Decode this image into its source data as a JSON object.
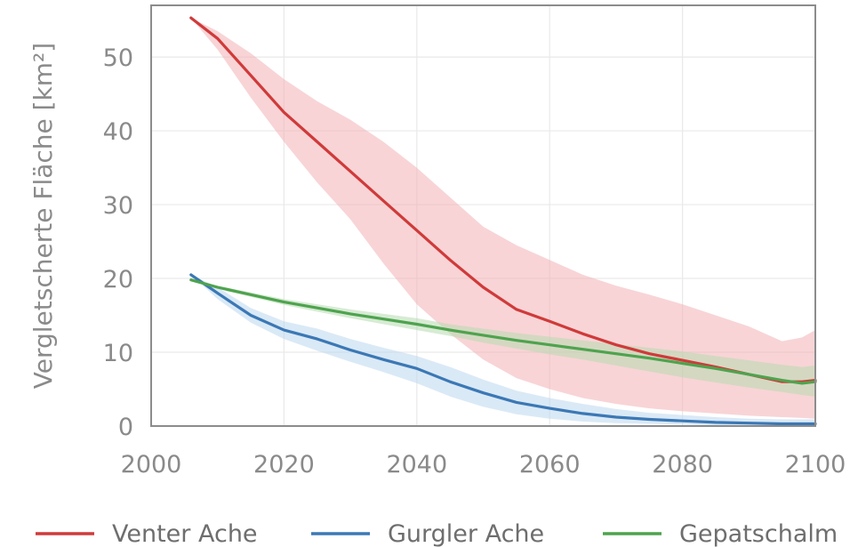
{
  "chart_data": {
    "type": "line",
    "title": "",
    "xlabel": "",
    "ylabel": "Vergletscherte Fläche [km²]",
    "xlim": [
      2000,
      2100
    ],
    "ylim": [
      0,
      57
    ],
    "x_ticks": [
      2000,
      2020,
      2040,
      2060,
      2080,
      2100
    ],
    "x_tick_labels": [
      "2000",
      "2020",
      "2040",
      "2060",
      "2080",
      "2100"
    ],
    "y_ticks": [
      0,
      10,
      20,
      30,
      40,
      50
    ],
    "y_tick_labels": [
      "0",
      "10",
      "20",
      "30",
      "40",
      "50"
    ],
    "grid": true,
    "legend_position": "bottom",
    "series": [
      {
        "name": "Venter Ache",
        "color": "#d03a3a",
        "band_color": "#f3b1b5",
        "x": [
          2006,
          2010,
          2015,
          2020,
          2025,
          2030,
          2035,
          2040,
          2045,
          2050,
          2055,
          2060,
          2065,
          2070,
          2075,
          2080,
          2085,
          2090,
          2095,
          2098,
          2100
        ],
        "values": [
          55.3,
          52.5,
          47.5,
          42.5,
          38.5,
          34.5,
          30.5,
          26.5,
          22.5,
          18.8,
          15.8,
          14.2,
          12.5,
          11.0,
          9.8,
          8.9,
          8.0,
          7.0,
          6.0,
          6.0,
          6.2
        ],
        "lower": [
          55.3,
          51.0,
          44.5,
          38.5,
          33.0,
          28.0,
          22.0,
          16.5,
          12.5,
          9.0,
          6.5,
          5.0,
          3.8,
          3.0,
          2.4,
          2.0,
          1.7,
          1.4,
          1.2,
          1.1,
          1.0
        ],
        "upper": [
          55.3,
          53.5,
          50.5,
          47.0,
          44.0,
          41.5,
          38.5,
          35.0,
          31.0,
          27.0,
          24.5,
          22.5,
          20.5,
          19.0,
          17.8,
          16.5,
          15.0,
          13.5,
          11.5,
          12.0,
          13.0
        ]
      },
      {
        "name": "Gurgler Ache",
        "color": "#3b78b5",
        "band_color": "#bcd7ee",
        "x": [
          2006,
          2010,
          2015,
          2020,
          2025,
          2030,
          2035,
          2040,
          2045,
          2050,
          2055,
          2060,
          2065,
          2070,
          2075,
          2080,
          2085,
          2090,
          2095,
          2100
        ],
        "values": [
          20.5,
          18.0,
          15.0,
          13.0,
          11.8,
          10.3,
          9.0,
          7.8,
          6.0,
          4.5,
          3.2,
          2.4,
          1.7,
          1.2,
          0.9,
          0.7,
          0.5,
          0.4,
          0.3,
          0.3
        ],
        "lower": [
          20.5,
          17.2,
          14.0,
          11.8,
          10.2,
          8.7,
          7.3,
          5.8,
          4.0,
          2.6,
          1.6,
          1.0,
          0.6,
          0.4,
          0.3,
          0.2,
          0.1,
          0.1,
          0.1,
          0.1
        ],
        "upper": [
          20.5,
          18.8,
          16.0,
          14.2,
          13.2,
          11.8,
          10.6,
          9.5,
          8.0,
          6.3,
          4.8,
          3.8,
          3.0,
          2.3,
          1.8,
          1.5,
          1.2,
          1.0,
          0.9,
          0.9
        ]
      },
      {
        "name": "Gepatschalm",
        "color": "#4ea34e",
        "band_color": "#b7dbb0",
        "x": [
          2006,
          2010,
          2015,
          2020,
          2025,
          2030,
          2035,
          2040,
          2045,
          2050,
          2055,
          2060,
          2065,
          2070,
          2075,
          2080,
          2085,
          2090,
          2095,
          2098,
          2100
        ],
        "values": [
          19.8,
          18.8,
          17.8,
          16.8,
          16.0,
          15.2,
          14.5,
          13.8,
          13.0,
          12.3,
          11.6,
          11.0,
          10.4,
          9.8,
          9.2,
          8.5,
          7.8,
          7.0,
          6.2,
          5.8,
          6.0
        ],
        "lower": [
          19.8,
          18.6,
          17.5,
          16.4,
          15.5,
          14.6,
          13.8,
          13.0,
          12.2,
          11.3,
          10.5,
          9.7,
          9.0,
          8.2,
          7.4,
          6.6,
          5.9,
          5.2,
          4.6,
          4.2,
          4.0
        ],
        "upper": [
          19.8,
          19.0,
          18.1,
          17.2,
          16.5,
          15.8,
          15.2,
          14.6,
          13.8,
          13.2,
          12.6,
          12.1,
          11.6,
          11.1,
          10.6,
          10.1,
          9.5,
          8.9,
          8.3,
          8.0,
          8.2
        ]
      }
    ]
  }
}
